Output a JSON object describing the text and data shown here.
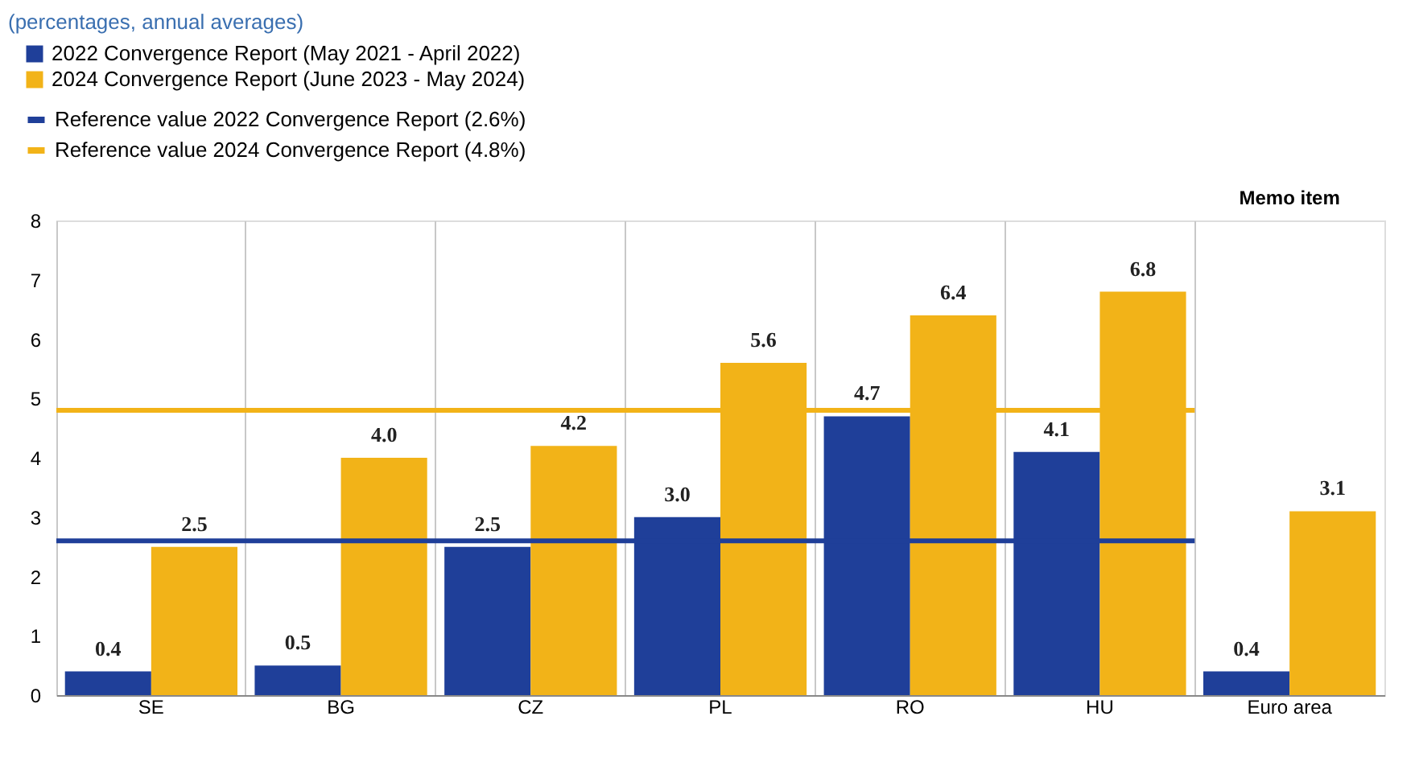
{
  "chart_data": {
    "type": "bar",
    "subtitle": "(percentages, annual averages)",
    "categories": [
      "SE",
      "BG",
      "CZ",
      "PL",
      "RO",
      "HU",
      "Euro area"
    ],
    "series": [
      {
        "name": "2022 Convergence Report (May 2021 - April 2022)",
        "color": "#1f3f99",
        "values": [
          0.4,
          0.5,
          2.5,
          3.0,
          4.7,
          4.1,
          0.4
        ],
        "value_labels": [
          "0.4",
          "0.5",
          "2.5",
          "3.0",
          "4.7",
          "4.1",
          "0.4"
        ]
      },
      {
        "name": "2024 Convergence Report (June 2023 - May 2024)",
        "color": "#f2b318",
        "values": [
          2.5,
          4.0,
          4.2,
          5.6,
          6.4,
          6.8,
          3.1
        ],
        "value_labels": [
          "2.5",
          "4.0",
          "4.2",
          "5.6",
          "6.4",
          "6.8",
          "3.1"
        ]
      }
    ],
    "ref_lines": [
      {
        "axis": "y",
        "value": 2.6,
        "label": "Reference value 2022 Convergence Report (2.6%)",
        "color": "#1f3f99"
      },
      {
        "axis": "y",
        "value": 4.8,
        "label": "Reference value 2024 Convergence Report (4.8%)",
        "color": "#f2b318"
      }
    ],
    "annotations": [
      "Memo item"
    ],
    "ylim": [
      0,
      8
    ],
    "yticks": [
      0,
      1,
      2,
      3,
      4,
      5,
      6,
      7,
      8
    ],
    "grid": "x",
    "legend": "top left"
  }
}
